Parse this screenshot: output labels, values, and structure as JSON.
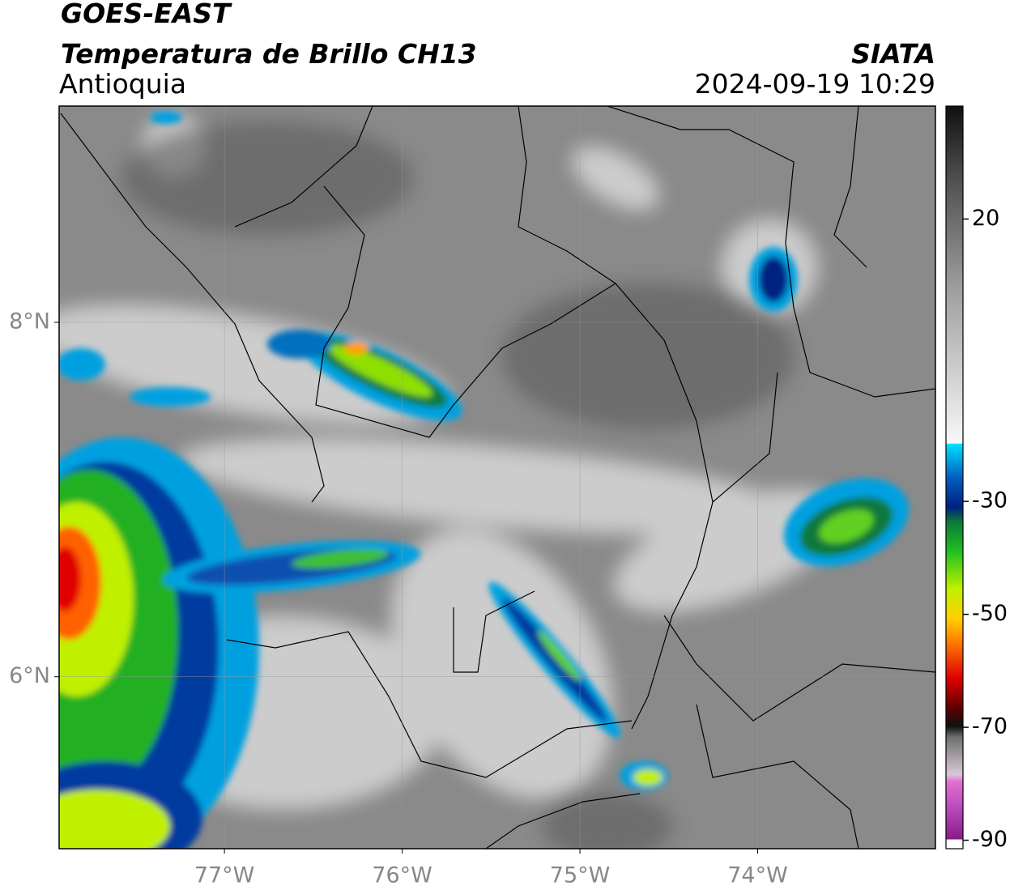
{
  "header": {
    "title": "GOES-EAST",
    "subtitle": "Temperatura de Brillo CH13",
    "region": "Antioquia",
    "source": "SIATA",
    "datetime": "2024-09-19 10:29"
  },
  "map": {
    "lonlim": [
      -77.93,
      -73.0
    ],
    "latlim": [
      5.03,
      9.22
    ],
    "lon_ticks": [
      {
        "value": -77,
        "label": "77°W"
      },
      {
        "value": -76,
        "label": "76°W"
      },
      {
        "value": -75,
        "label": "75°W"
      },
      {
        "value": -74,
        "label": "74°W"
      }
    ],
    "lat_ticks": [
      {
        "value": 8,
        "label": "8°N"
      },
      {
        "value": 6,
        "label": "6°N"
      }
    ]
  },
  "colorbar": {
    "lim": [
      -91.5,
      40
    ],
    "ticks": [
      20,
      -30,
      -50,
      -70,
      -90
    ]
  }
}
